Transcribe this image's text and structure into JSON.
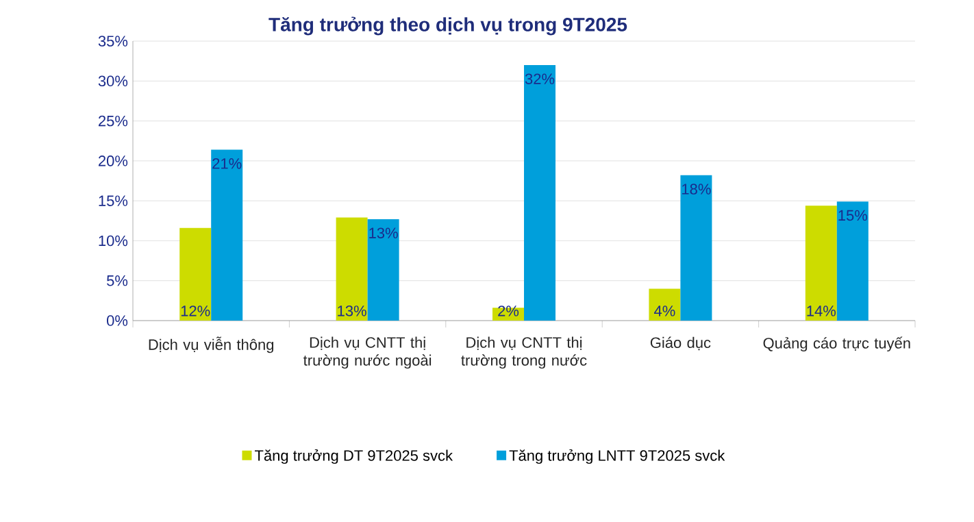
{
  "chart_data": {
    "type": "bar",
    "title": "Tăng trưởng theo dịch vụ trong 9T2025",
    "categories": [
      "Dịch vụ viễn thông",
      "Dịch vụ CNTT thị trường nước ngoài",
      "Dịch vụ CNTT thị trường trong nước",
      "Giáo dục",
      "Quảng cáo trực tuyến"
    ],
    "series": [
      {
        "name": "Tăng trưởng DT 9T2025 svck",
        "color": "#cddc00",
        "values": [
          11.6,
          12.9,
          1.6,
          4.0,
          14.4
        ],
        "value_labels": [
          "12%",
          "13%",
          "2%",
          "4%",
          "14%"
        ]
      },
      {
        "name": "Tăng trưởng LNTT 9T2025 svck",
        "color": "#009fdb",
        "values": [
          21.4,
          12.7,
          32.0,
          18.2,
          14.9
        ],
        "value_labels": [
          "21%",
          "13%",
          "32%",
          "18%",
          "15%"
        ]
      }
    ],
    "ylim": [
      0,
      35
    ],
    "yticks": [
      {
        "value": 0,
        "label": "0%"
      },
      {
        "value": 5,
        "label": "5%"
      },
      {
        "value": 10,
        "label": "10%"
      },
      {
        "value": 15,
        "label": "15%"
      },
      {
        "value": 20,
        "label": "20%"
      },
      {
        "value": 25,
        "label": "25%"
      },
      {
        "value": 30,
        "label": "30%"
      },
      {
        "value": 35,
        "label": "35%"
      }
    ],
    "grid": "y",
    "legend": "bottom"
  }
}
